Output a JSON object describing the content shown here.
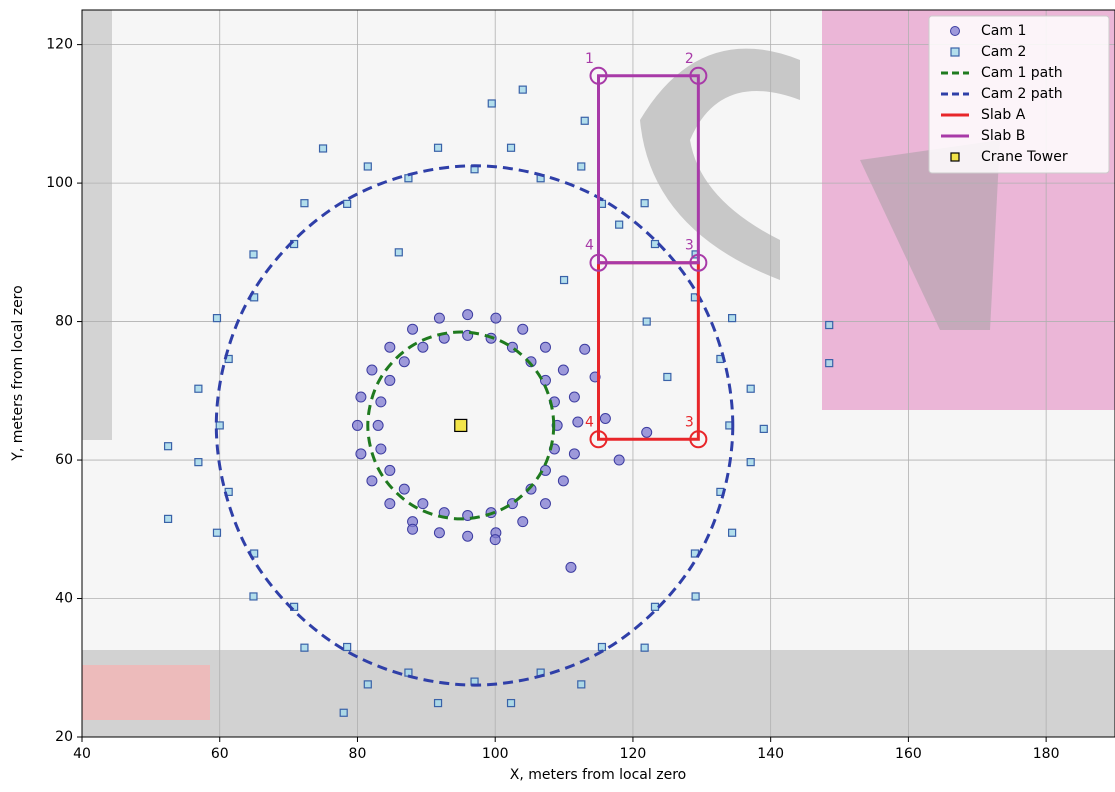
{
  "chart_data": {
    "type": "scatter",
    "xlabel": "X, meters from local zero",
    "ylabel": "Y, meters from local zero",
    "xlim": [
      40,
      190
    ],
    "ylim": [
      20,
      125
    ],
    "xticks": [
      40,
      60,
      80,
      100,
      120,
      140,
      160,
      180
    ],
    "yticks": [
      20,
      40,
      60,
      80,
      100,
      120
    ],
    "grid": true,
    "legend": "upper right",
    "series": [
      {
        "name": "Cam 1",
        "kind": "scatter",
        "marker": "circle",
        "color": "#7f7ad0",
        "edge": "#3c3ca0",
        "x": [
          109,
          108.6,
          107.3,
          105.2,
          102.5,
          99.4,
          96,
          92.6,
          89.5,
          86.8,
          84.7,
          83.4,
          83,
          83.4,
          84.7,
          86.8,
          89.5,
          92.6,
          96,
          99.4,
          102.5,
          105.2,
          107.3,
          108.6,
          112,
          111.5,
          109.9,
          107.3,
          104,
          100.1,
          96,
          91.9,
          88,
          84.7,
          82.1,
          80.5,
          80,
          80.5,
          82.1,
          84.7,
          88,
          91.9,
          96,
          100.1,
          104,
          107.3,
          109.9,
          111.5,
          118,
          111,
          114.5,
          116,
          113,
          122,
          88,
          100
        ],
        "y": [
          65,
          68.4,
          71.5,
          74.2,
          76.3,
          77.6,
          78,
          77.6,
          76.3,
          74.2,
          71.5,
          68.4,
          65,
          61.6,
          58.5,
          55.8,
          53.7,
          52.4,
          52,
          52.4,
          53.7,
          55.8,
          58.5,
          61.6,
          65.5,
          69.1,
          73,
          76.3,
          78.9,
          80.5,
          81,
          80.5,
          78.9,
          76.3,
          73,
          69.1,
          65,
          60.9,
          57,
          53.7,
          51.1,
          49.5,
          49,
          49.5,
          51.1,
          53.7,
          57,
          60.9,
          60,
          44.5,
          72,
          66,
          76,
          64,
          50,
          48.5
        ]
      },
      {
        "name": "Cam 2",
        "kind": "scatter",
        "marker": "square",
        "color": "#a6d9ea",
        "edge": "#3a62a8",
        "x": [
          134,
          132.7,
          129,
          123.2,
          115.5,
          106.6,
          97,
          87.4,
          78.5,
          70.8,
          65,
          61.3,
          60,
          61.3,
          65,
          70.8,
          78.5,
          87.4,
          97,
          106.6,
          115.5,
          123.2,
          129,
          132.7,
          137.1,
          134.4,
          129.1,
          121.7,
          112.5,
          102.3,
          91.7,
          81.5,
          72.3,
          64.9,
          59.6,
          56.9,
          56.9,
          59.6,
          64.9,
          72.3,
          81.5,
          91.7,
          102.3,
          112.5,
          121.7,
          129.1,
          134.4,
          137.1,
          148.5,
          148.5,
          52.5,
          52.5,
          104,
          99.5,
          113,
          78,
          139,
          118,
          110,
          122,
          125,
          75,
          86
        ],
        "y": [
          65,
          74.6,
          83.5,
          91.2,
          97,
          100.7,
          102,
          100.7,
          97,
          91.2,
          83.5,
          74.6,
          65,
          55.4,
          46.5,
          38.8,
          33,
          29.3,
          28,
          29.3,
          33,
          38.8,
          46.5,
          55.4,
          70.3,
          80.5,
          89.7,
          97.1,
          102.4,
          105.1,
          105.1,
          102.4,
          97.1,
          89.7,
          80.5,
          70.3,
          59.7,
          49.5,
          40.3,
          32.9,
          27.6,
          24.9,
          24.9,
          27.6,
          32.9,
          40.3,
          49.5,
          59.7,
          79.5,
          74,
          51.5,
          62,
          113.5,
          111.5,
          109,
          23.5,
          64.5,
          94,
          86,
          80,
          72,
          105,
          90
        ]
      },
      {
        "name": "Cam 1 path",
        "kind": "line",
        "style": "dashed",
        "color": "#1f7a1f",
        "x": [
          108.5,
          106.7,
          101.75,
          95,
          88.25,
          83.3,
          81.5,
          83.3,
          88.25,
          95,
          101.75,
          106.7,
          108.5
        ],
        "y": [
          65,
          71.75,
          76.7,
          78.5,
          76.7,
          71.75,
          65,
          58.25,
          53.3,
          51.5,
          53.3,
          58.25,
          65
        ]
      },
      {
        "name": "Cam 2 path",
        "kind": "line",
        "style": "dashed",
        "color": "#2f3fa8",
        "x": [
          134.5,
          129.5,
          115.75,
          97,
          78.25,
          64.5,
          59.5,
          64.5,
          78.25,
          97,
          115.75,
          129.5,
          134.5
        ],
        "y": [
          65,
          83.75,
          97.5,
          102.5,
          97.5,
          83.75,
          65,
          46.25,
          32.5,
          27.5,
          32.5,
          46.25,
          65
        ]
      },
      {
        "name": "Slab A",
        "kind": "slab",
        "color": "#e8262a",
        "x": [
          115,
          129.5,
          129.5,
          115
        ],
        "y": [
          63,
          63,
          88.5,
          88.5
        ],
        "corner_labels": [
          "4",
          "3",
          null,
          null
        ]
      },
      {
        "name": "Slab B",
        "kind": "slab",
        "color": "#a83aa8",
        "x": [
          115,
          129.5,
          129.5,
          115
        ],
        "y": [
          115.5,
          115.5,
          88.5,
          88.5
        ],
        "corner_labels": [
          "1",
          "2",
          "3",
          "4"
        ]
      },
      {
        "name": "Crane Tower",
        "kind": "scatter",
        "marker": "square",
        "color": "#f2e22a",
        "edge": "#000000",
        "size": 12,
        "x": [
          95
        ],
        "y": [
          65
        ]
      }
    ]
  }
}
